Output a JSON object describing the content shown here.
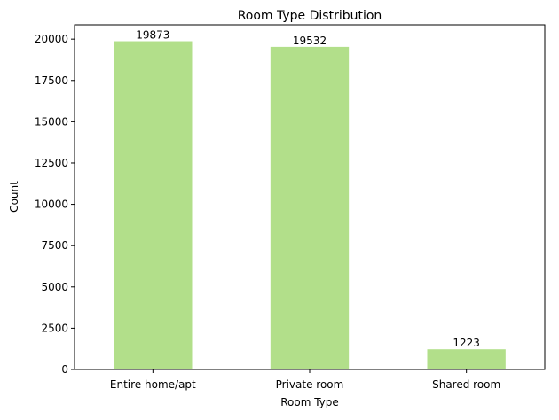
{
  "chart_data": {
    "type": "bar",
    "title": "Room Type Distribution",
    "xlabel": "Room Type",
    "ylabel": "Count",
    "categories": [
      "Entire home/apt",
      "Private room",
      "Shared room"
    ],
    "values": [
      19873,
      19532,
      1223
    ],
    "data_labels": [
      "19873",
      "19532",
      "1223"
    ],
    "ylim": [
      0,
      20867
    ],
    "yticks": [
      0,
      2500,
      5000,
      7500,
      10000,
      12500,
      15000,
      17500,
      20000
    ],
    "ytick_labels": [
      "0",
      "2500",
      "5000",
      "7500",
      "10000",
      "12500",
      "15000",
      "17500",
      "20000"
    ],
    "bar_color": "#b2df8a",
    "grid": false,
    "legend": false
  }
}
